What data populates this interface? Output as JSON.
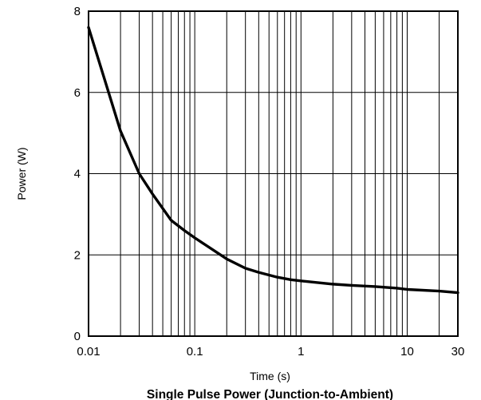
{
  "chart_data": {
    "type": "line",
    "title": "Single Pulse Power (Junction-to-Ambient)",
    "xlabel": "Time (s)",
    "ylabel": "Power (W)",
    "x_scale": "log",
    "xlim": [
      0.01,
      30
    ],
    "ylim": [
      0,
      8
    ],
    "x_ticks": [
      {
        "value": 0.01,
        "label": "0.01"
      },
      {
        "value": 0.1,
        "label": "0.1"
      },
      {
        "value": 1,
        "label": "1"
      },
      {
        "value": 10,
        "label": "10"
      },
      {
        "value": 30,
        "label": "30"
      }
    ],
    "y_ticks": [
      {
        "value": 0,
        "label": "0"
      },
      {
        "value": 2,
        "label": "2"
      },
      {
        "value": 4,
        "label": "4"
      },
      {
        "value": 6,
        "label": "6"
      },
      {
        "value": 8,
        "label": "8"
      }
    ],
    "grid": true,
    "x_minor_grid": [
      0.02,
      0.03,
      0.04,
      0.05,
      0.06,
      0.07,
      0.08,
      0.09,
      0.2,
      0.3,
      0.4,
      0.5,
      0.6,
      0.7,
      0.8,
      0.9,
      2,
      3,
      4,
      5,
      6,
      7,
      8,
      9,
      20
    ],
    "y_grid": [
      2,
      4,
      6
    ],
    "series": [
      {
        "x": [
          0.01,
          0.02,
          0.03,
          0.04,
          0.06,
          0.08,
          0.1,
          0.2,
          0.3,
          0.4,
          0.6,
          0.8,
          1,
          2,
          3,
          5,
          8,
          10,
          20,
          30
        ],
        "y": [
          7.6,
          5.05,
          4.0,
          3.5,
          2.85,
          2.6,
          2.42,
          1.9,
          1.67,
          1.57,
          1.45,
          1.39,
          1.36,
          1.28,
          1.25,
          1.22,
          1.18,
          1.15,
          1.11,
          1.07
        ]
      }
    ]
  }
}
